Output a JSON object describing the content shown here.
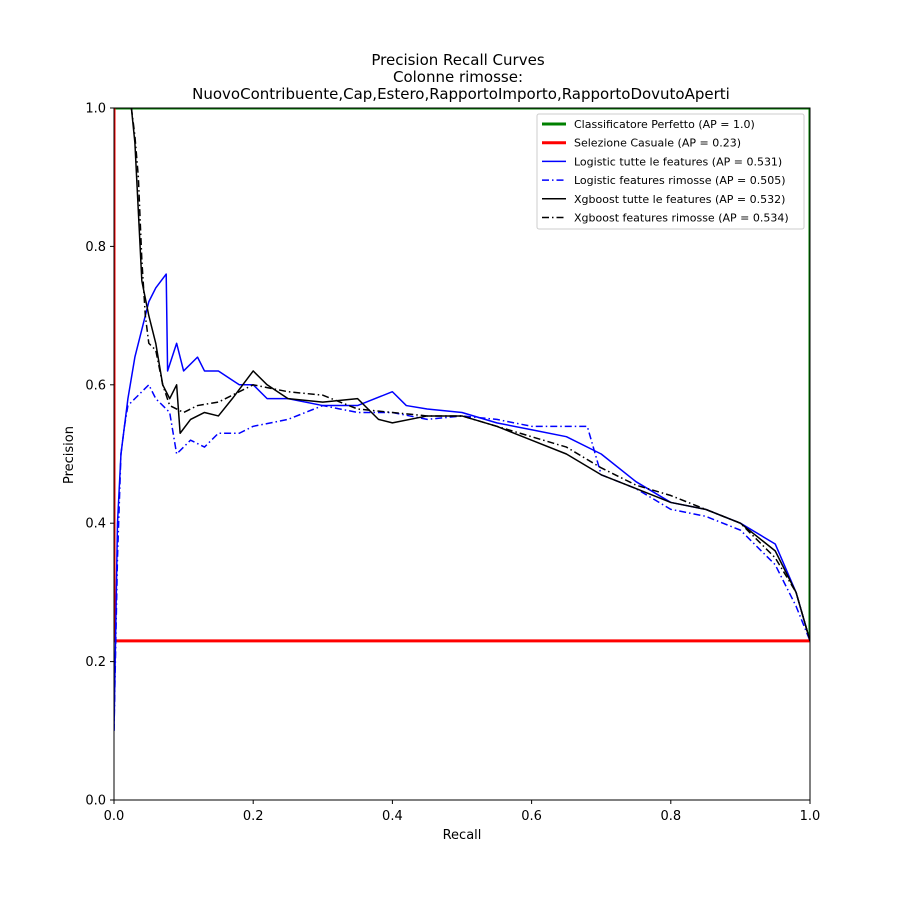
{
  "chart_data": {
    "type": "line",
    "title": "Precision Recall Curves",
    "subtitle_lines": [
      "Colonne rimosse:",
      "NuovoContribuente,Cap,Estero,RapportoImporto,RapportoDovutoAperti"
    ],
    "xlabel": "Recall",
    "ylabel": "Precision",
    "xlim": [
      0,
      1
    ],
    "ylim": [
      0,
      1
    ],
    "xticks": [
      "0.0",
      "0.2",
      "0.4",
      "0.6",
      "0.8",
      "1.0"
    ],
    "yticks": [
      "0.0",
      "0.2",
      "0.4",
      "0.6",
      "0.8",
      "1.0"
    ],
    "grid": false,
    "legend_position": "upper-right",
    "series": [
      {
        "name": "Classificatore Perfetto (AP = 1.0)",
        "color": "#008000",
        "style": "solid",
        "width": 3,
        "points": [
          [
            0,
            1
          ],
          [
            1,
            1
          ],
          [
            1,
            0.23
          ]
        ]
      },
      {
        "name": "Selezione Casuale (AP = 0.23)",
        "color": "#ff0000",
        "style": "solid",
        "width": 3,
        "points": [
          [
            0,
            1
          ],
          [
            0,
            0.23
          ],
          [
            1,
            0.23
          ]
        ]
      },
      {
        "name": "Logistic tutte le features (AP = 0.531)",
        "color": "#0000ff",
        "style": "solid",
        "width": 1.5,
        "points": [
          [
            0.0,
            0.1
          ],
          [
            0.005,
            0.4
          ],
          [
            0.01,
            0.5
          ],
          [
            0.02,
            0.58
          ],
          [
            0.03,
            0.64
          ],
          [
            0.04,
            0.68
          ],
          [
            0.05,
            0.72
          ],
          [
            0.06,
            0.74
          ],
          [
            0.075,
            0.76
          ],
          [
            0.077,
            0.62
          ],
          [
            0.09,
            0.66
          ],
          [
            0.1,
            0.62
          ],
          [
            0.12,
            0.64
          ],
          [
            0.13,
            0.62
          ],
          [
            0.15,
            0.62
          ],
          [
            0.18,
            0.6
          ],
          [
            0.2,
            0.6
          ],
          [
            0.22,
            0.58
          ],
          [
            0.25,
            0.58
          ],
          [
            0.3,
            0.57
          ],
          [
            0.35,
            0.57
          ],
          [
            0.4,
            0.59
          ],
          [
            0.42,
            0.57
          ],
          [
            0.45,
            0.565
          ],
          [
            0.5,
            0.56
          ],
          [
            0.55,
            0.545
          ],
          [
            0.6,
            0.535
          ],
          [
            0.65,
            0.525
          ],
          [
            0.7,
            0.5
          ],
          [
            0.75,
            0.46
          ],
          [
            0.8,
            0.43
          ],
          [
            0.85,
            0.42
          ],
          [
            0.9,
            0.4
          ],
          [
            0.95,
            0.37
          ],
          [
            0.98,
            0.3
          ],
          [
            1.0,
            0.23
          ]
        ]
      },
      {
        "name": "Logistic features rimosse (AP = 0.505)",
        "color": "#0000ff",
        "style": "dashdot",
        "width": 1.5,
        "points": [
          [
            0.0,
            0.1
          ],
          [
            0.005,
            0.35
          ],
          [
            0.01,
            0.5
          ],
          [
            0.015,
            0.54
          ],
          [
            0.02,
            0.57
          ],
          [
            0.03,
            0.58
          ],
          [
            0.05,
            0.6
          ],
          [
            0.06,
            0.58
          ],
          [
            0.08,
            0.56
          ],
          [
            0.09,
            0.5
          ],
          [
            0.11,
            0.52
          ],
          [
            0.13,
            0.51
          ],
          [
            0.15,
            0.53
          ],
          [
            0.18,
            0.53
          ],
          [
            0.2,
            0.54
          ],
          [
            0.25,
            0.55
          ],
          [
            0.3,
            0.57
          ],
          [
            0.35,
            0.56
          ],
          [
            0.4,
            0.56
          ],
          [
            0.45,
            0.55
          ],
          [
            0.5,
            0.555
          ],
          [
            0.55,
            0.55
          ],
          [
            0.6,
            0.54
          ],
          [
            0.65,
            0.54
          ],
          [
            0.68,
            0.54
          ],
          [
            0.7,
            0.47
          ],
          [
            0.75,
            0.45
          ],
          [
            0.8,
            0.42
          ],
          [
            0.85,
            0.41
          ],
          [
            0.9,
            0.39
          ],
          [
            0.95,
            0.34
          ],
          [
            0.98,
            0.28
          ],
          [
            1.0,
            0.23
          ]
        ]
      },
      {
        "name": "Xgboost tutte le features (AP = 0.532)",
        "color": "#000000",
        "style": "solid",
        "width": 1.5,
        "points": [
          [
            0.025,
            1.0
          ],
          [
            0.03,
            0.95
          ],
          [
            0.035,
            0.85
          ],
          [
            0.04,
            0.75
          ],
          [
            0.05,
            0.7
          ],
          [
            0.06,
            0.66
          ],
          [
            0.07,
            0.6
          ],
          [
            0.08,
            0.58
          ],
          [
            0.09,
            0.6
          ],
          [
            0.095,
            0.53
          ],
          [
            0.11,
            0.55
          ],
          [
            0.13,
            0.56
          ],
          [
            0.15,
            0.555
          ],
          [
            0.17,
            0.58
          ],
          [
            0.2,
            0.62
          ],
          [
            0.22,
            0.6
          ],
          [
            0.25,
            0.58
          ],
          [
            0.3,
            0.575
          ],
          [
            0.35,
            0.58
          ],
          [
            0.38,
            0.55
          ],
          [
            0.4,
            0.545
          ],
          [
            0.45,
            0.555
          ],
          [
            0.5,
            0.555
          ],
          [
            0.55,
            0.54
          ],
          [
            0.6,
            0.52
          ],
          [
            0.65,
            0.5
          ],
          [
            0.7,
            0.47
          ],
          [
            0.75,
            0.45
          ],
          [
            0.8,
            0.43
          ],
          [
            0.85,
            0.42
          ],
          [
            0.9,
            0.4
          ],
          [
            0.95,
            0.36
          ],
          [
            0.98,
            0.3
          ],
          [
            1.0,
            0.23
          ]
        ]
      },
      {
        "name": "Xgboost features rimosse (AP = 0.534)",
        "color": "#000000",
        "style": "dashdot",
        "width": 1.5,
        "points": [
          [
            0.025,
            1.0
          ],
          [
            0.03,
            0.96
          ],
          [
            0.035,
            0.9
          ],
          [
            0.04,
            0.78
          ],
          [
            0.045,
            0.7
          ],
          [
            0.05,
            0.66
          ],
          [
            0.06,
            0.65
          ],
          [
            0.07,
            0.6
          ],
          [
            0.08,
            0.57
          ],
          [
            0.1,
            0.56
          ],
          [
            0.12,
            0.57
          ],
          [
            0.15,
            0.575
          ],
          [
            0.2,
            0.6
          ],
          [
            0.25,
            0.59
          ],
          [
            0.3,
            0.585
          ],
          [
            0.35,
            0.565
          ],
          [
            0.4,
            0.56
          ],
          [
            0.45,
            0.555
          ],
          [
            0.5,
            0.555
          ],
          [
            0.55,
            0.54
          ],
          [
            0.6,
            0.525
          ],
          [
            0.65,
            0.51
          ],
          [
            0.7,
            0.48
          ],
          [
            0.75,
            0.455
          ],
          [
            0.8,
            0.44
          ],
          [
            0.85,
            0.42
          ],
          [
            0.9,
            0.4
          ],
          [
            0.95,
            0.35
          ],
          [
            0.98,
            0.3
          ],
          [
            1.0,
            0.23
          ]
        ]
      }
    ]
  }
}
